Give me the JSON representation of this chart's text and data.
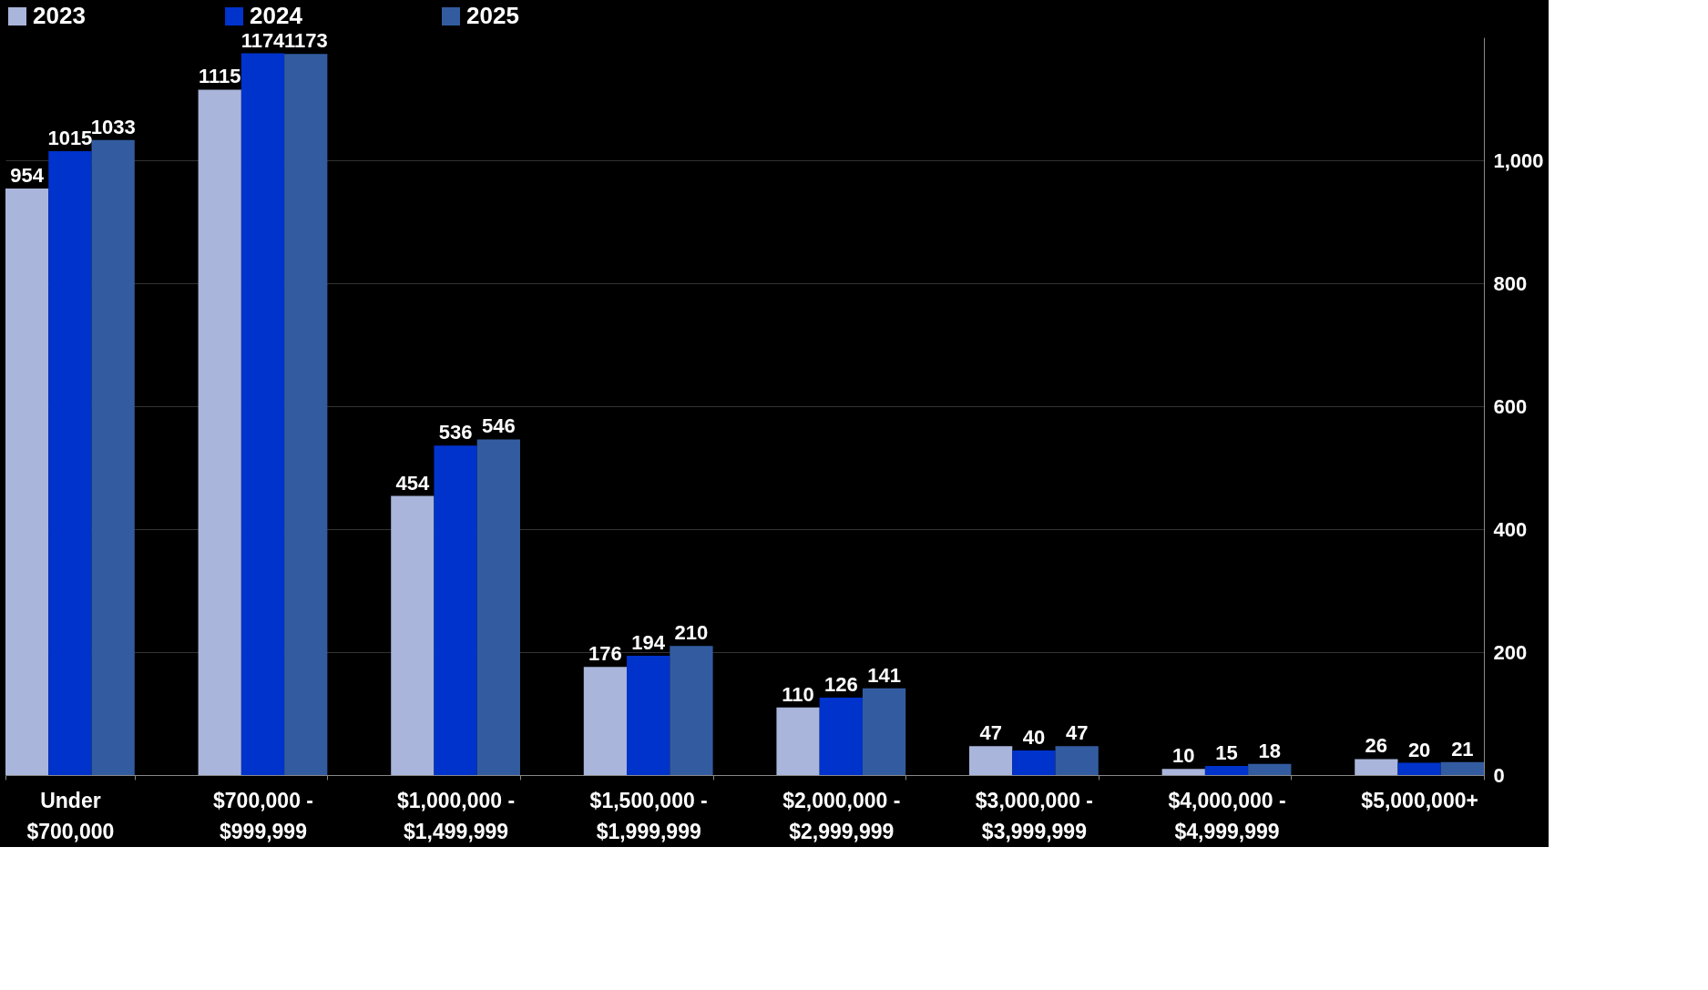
{
  "chart_data": {
    "type": "bar",
    "categories": [
      "Under $700,000",
      "$700,000 - $999,999",
      "$1,000,000 - $1,499,999",
      "$1,500,000 - $1,999,999",
      "$2,000,000 - $2,999,999",
      "$3,000,000 - $3,999,999",
      "$4,000,000 - $4,999,999",
      "$5,000,000+"
    ],
    "series": [
      {
        "name": "2023",
        "color": "#a9b5da",
        "values": [
          954,
          1115,
          454,
          176,
          110,
          47,
          10,
          26
        ]
      },
      {
        "name": "2024",
        "color": "#0033cc",
        "values": [
          1015,
          1174,
          536,
          194,
          126,
          40,
          15,
          20
        ]
      },
      {
        "name": "2025",
        "color": "#335ca0",
        "values": [
          1033,
          1173,
          546,
          210,
          141,
          47,
          18,
          21
        ]
      }
    ],
    "ylim": [
      0,
      1200
    ],
    "yticks": [
      0,
      200,
      400,
      600,
      800,
      {
        "value": 1000,
        "label": "1,000"
      }
    ],
    "grid": "y",
    "legend": "top",
    "data_labels": true
  }
}
